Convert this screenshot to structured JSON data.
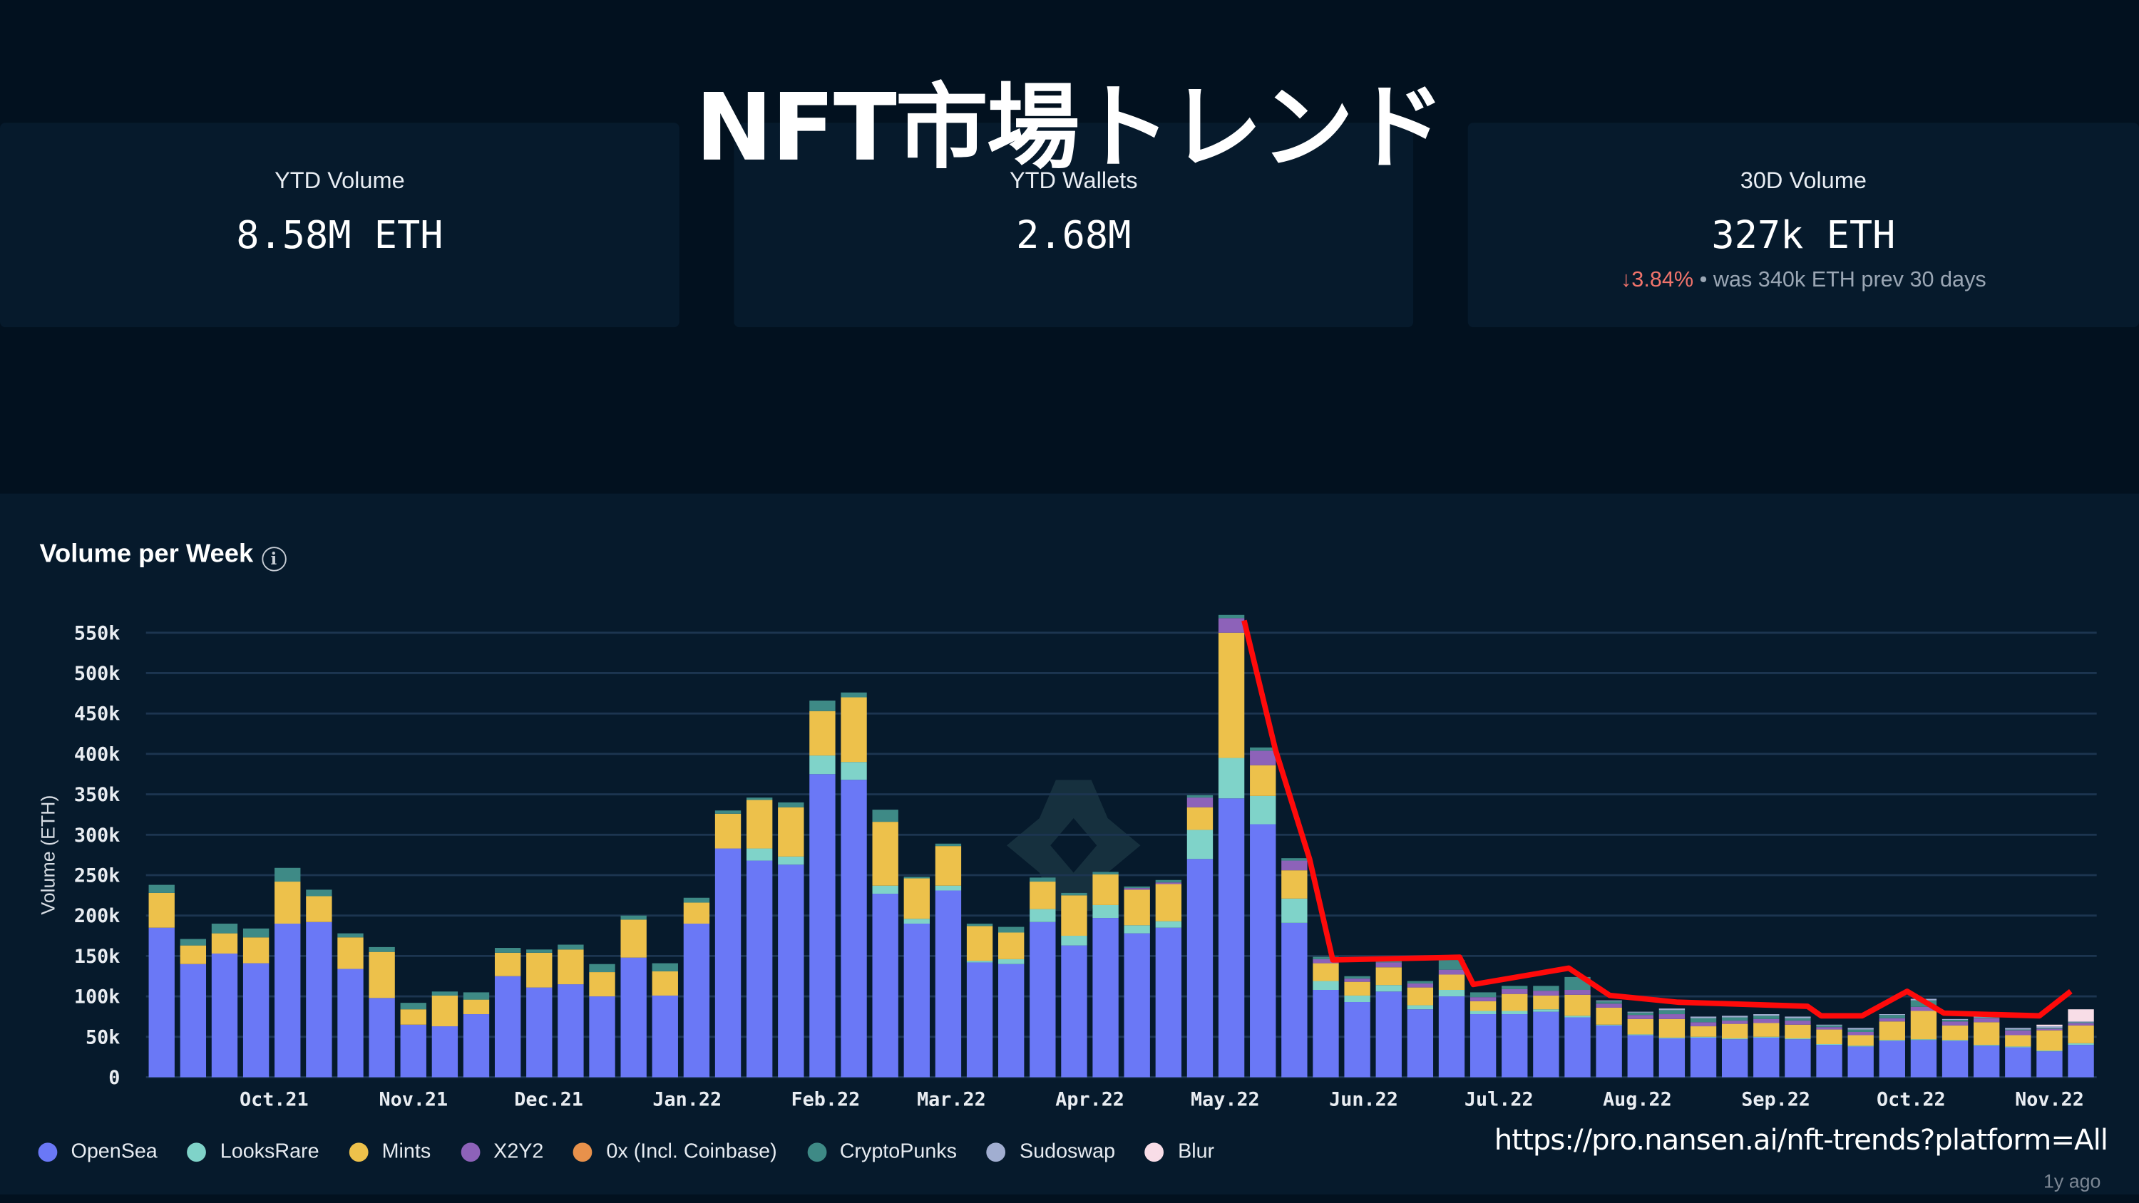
{
  "title": "NFT市場トレンド",
  "cards": [
    {
      "label": "YTD Volume",
      "value": "8.58M ETH"
    },
    {
      "label": "YTD Wallets",
      "value": "2.68M"
    },
    {
      "label": "30D Volume",
      "value": "327k ETH",
      "change": "↓3.84%",
      "change_note": "• was 340k ETH prev 30 days"
    }
  ],
  "panel": {
    "title": "Volume per Week",
    "info_icon": "info-icon"
  },
  "url": "https://pro.nansen.ai/nft-trends?platform=All",
  "age_label": "1y ago",
  "chart_data": {
    "type": "bar",
    "stacked": true,
    "title": "Volume per Week",
    "ylabel": "Volume (ETH)",
    "ylim": [
      0,
      550000
    ],
    "yticks": [
      "0",
      "50k",
      "100k",
      "150k",
      "200k",
      "250k",
      "300k",
      "350k",
      "400k",
      "450k",
      "500k",
      "550k"
    ],
    "xtick_labels": [
      "Oct.21",
      "Nov.21",
      "Dec.21",
      "Jan.22",
      "Feb.22",
      "Mar.22",
      "Apr.22",
      "May.22",
      "Jun.22",
      "Jul.22",
      "Aug.22",
      "Sep.22",
      "Oct.22",
      "Nov.22"
    ],
    "grid": true,
    "legend_position": "bottom-left",
    "unit": "thousand ETH",
    "series": [
      {
        "name": "OpenSea",
        "color": "#6a78f6",
        "values": [
          185,
          140,
          153,
          141,
          190,
          192,
          134,
          98,
          65,
          63,
          78,
          125,
          111,
          115,
          100,
          148,
          101,
          190,
          283,
          268,
          263,
          375,
          368,
          227,
          190,
          231,
          142,
          140,
          192,
          163,
          197,
          178,
          185,
          270,
          345,
          313,
          191,
          108,
          93,
          106,
          84,
          100,
          78,
          78,
          81,
          74,
          64,
          52,
          48,
          49,
          47,
          49,
          47,
          40,
          38,
          45,
          46,
          45,
          39,
          37,
          32,
          40
        ]
      },
      {
        "name": "LooksRare",
        "color": "#7fd3c9",
        "values": [
          0,
          0,
          0,
          0,
          0,
          0,
          0,
          0,
          0,
          0,
          0,
          0,
          0,
          0,
          0,
          0,
          0,
          0,
          0,
          15,
          10,
          23,
          22,
          10,
          6,
          6,
          2,
          6,
          16,
          12,
          16,
          10,
          8,
          36,
          50,
          35,
          30,
          11,
          8,
          8,
          5,
          8,
          4,
          4,
          3,
          2,
          1,
          1,
          1,
          1,
          1,
          1,
          1,
          1,
          1,
          1,
          1,
          1,
          1,
          1,
          1,
          2
        ]
      },
      {
        "name": "Mints",
        "color": "#edc14b",
        "values": [
          43,
          23,
          25,
          32,
          52,
          32,
          39,
          57,
          19,
          38,
          18,
          29,
          43,
          43,
          30,
          47,
          30,
          26,
          43,
          60,
          61,
          55,
          80,
          79,
          50,
          49,
          43,
          33,
          34,
          50,
          38,
          44,
          46,
          28,
          155,
          38,
          35,
          22,
          17,
          22,
          22,
          19,
          12,
          21,
          17,
          26,
          21,
          19,
          23,
          13,
          18,
          17,
          17,
          18,
          13,
          23,
          35,
          18,
          28,
          14,
          25,
          22
        ]
      },
      {
        "name": "X2Y2",
        "color": "#8d62b9",
        "values": [
          0,
          0,
          0,
          0,
          0,
          0,
          0,
          0,
          0,
          0,
          0,
          0,
          0,
          0,
          0,
          0,
          0,
          0,
          0,
          0,
          0,
          0,
          0,
          0,
          0,
          0,
          0,
          0,
          0,
          0,
          0,
          2,
          2,
          12,
          18,
          18,
          12,
          5,
          4,
          6,
          5,
          6,
          5,
          6,
          6,
          6,
          5,
          5,
          6,
          5,
          4,
          5,
          5,
          3,
          4,
          4,
          5,
          5,
          5,
          6,
          2,
          3
        ]
      },
      {
        "name": "0x (Incl. Coinbase)",
        "color": "#e8914b",
        "values": [
          0,
          0,
          0,
          0,
          0,
          0,
          0,
          0,
          0,
          0,
          0,
          0,
          0,
          0,
          0,
          0,
          0,
          0,
          0,
          0,
          0,
          0,
          0,
          0,
          0,
          0,
          0,
          0,
          0,
          0,
          0,
          0,
          0,
          0,
          0,
          0,
          0,
          0,
          0,
          0,
          0,
          0,
          0,
          0,
          0,
          0,
          0,
          0,
          0,
          0,
          0,
          0,
          0,
          0,
          0,
          0,
          0,
          0,
          0,
          0,
          0,
          0
        ]
      },
      {
        "name": "CryptoPunks",
        "color": "#3e8a86",
        "values": [
          10,
          8,
          12,
          11,
          17,
          8,
          5,
          6,
          8,
          5,
          9,
          6,
          4,
          6,
          10,
          5,
          10,
          6,
          4,
          3,
          6,
          13,
          6,
          15,
          2,
          3,
          3,
          7,
          5,
          3,
          3,
          2,
          3,
          3,
          4,
          4,
          3,
          3,
          3,
          4,
          3,
          12,
          6,
          4,
          6,
          16,
          3,
          3,
          5,
          5,
          4,
          4,
          3,
          2,
          3,
          4,
          8,
          2,
          1,
          1,
          1,
          1
        ]
      },
      {
        "name": "Sudoswap",
        "color": "#a1aed1",
        "values": [
          0,
          0,
          0,
          0,
          0,
          0,
          0,
          0,
          0,
          0,
          0,
          0,
          0,
          0,
          0,
          0,
          0,
          0,
          0,
          0,
          0,
          0,
          0,
          0,
          0,
          0,
          0,
          0,
          0,
          0,
          0,
          0,
          0,
          0,
          0,
          0,
          0,
          0,
          0,
          0,
          0,
          0,
          0,
          0,
          0,
          0,
          1,
          1,
          2,
          2,
          2,
          2,
          2,
          1,
          2,
          1,
          2,
          1,
          2,
          2,
          2,
          1
        ]
      },
      {
        "name": "Blur",
        "color": "#f8dde7",
        "values": [
          0,
          0,
          0,
          0,
          0,
          0,
          0,
          0,
          0,
          0,
          0,
          0,
          0,
          0,
          0,
          0,
          0,
          0,
          0,
          0,
          0,
          0,
          0,
          0,
          0,
          0,
          0,
          0,
          0,
          0,
          0,
          0,
          0,
          0,
          0,
          0,
          0,
          0,
          0,
          0,
          0,
          0,
          0,
          0,
          0,
          0,
          0,
          0,
          0,
          0,
          0,
          0,
          0,
          0,
          0,
          0,
          0,
          0,
          0,
          0,
          2,
          15
        ]
      }
    ],
    "annotation_line_color": "#ff0a0a"
  }
}
